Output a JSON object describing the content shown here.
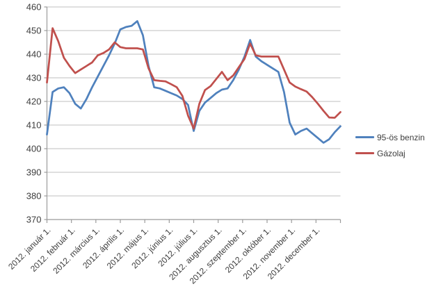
{
  "chart_data": {
    "type": "line",
    "title": "",
    "background": "#FFFFFF",
    "grid": true,
    "gridline_color": "#BFBFBF",
    "axis_color": "#9B9B9B",
    "text_color": "#3D3D3D",
    "legend_position": "right",
    "x_axis": {
      "tick_labels": [
        "2012. január 1.",
        "2012. február 1.",
        "2012. március 1.",
        "2012. április 1.",
        "2012. május 1.",
        "2012. június 1.",
        "2012. július 1.",
        "2012. augusztus 1.",
        "2012. szeptember 1.",
        "2012. október 1.",
        "2012. november 1.",
        "2012. december 1."
      ]
    },
    "y_axis": {
      "min": 370,
      "max": 460,
      "step": 10,
      "tick_labels": [
        "370",
        "380",
        "390",
        "400",
        "410",
        "420",
        "430",
        "440",
        "450",
        "460"
      ]
    },
    "series": [
      {
        "name": "95-ös benzin",
        "color": "#4F81BD",
        "values": [
          406,
          424,
          425.5,
          426,
          423.5,
          419,
          417,
          421,
          426,
          430.5,
          435,
          439.5,
          444.5,
          450.5,
          451.5,
          452,
          454,
          448,
          435,
          426,
          425.5,
          424.5,
          423.5,
          422.5,
          421,
          418.5,
          407.5,
          416,
          419.5,
          421.5,
          423.5,
          425,
          425.5,
          429,
          433.5,
          439,
          446,
          439,
          437,
          435.5,
          434,
          432.5,
          424,
          411,
          406,
          407.5,
          408.5,
          406.5,
          404.5,
          402.5,
          404,
          407,
          409.5
        ]
      },
      {
        "name": "Gázolaj",
        "color": "#C0504D",
        "values": [
          428,
          451,
          445.5,
          438.5,
          435,
          432,
          433.5,
          435,
          436.5,
          439.5,
          440.5,
          442,
          445,
          443,
          442.5,
          442.5,
          442.5,
          442,
          434,
          429,
          428.7,
          428.5,
          427.3,
          426,
          422.3,
          414,
          408.5,
          419,
          424.8,
          426.5,
          429.5,
          432.5,
          429,
          431,
          434.5,
          438,
          444.5,
          439.5,
          439,
          439,
          439,
          439,
          433.5,
          428,
          426.3,
          425.2,
          424.2,
          421.8,
          419,
          416,
          413.2,
          413.1,
          415.5
        ]
      }
    ]
  }
}
